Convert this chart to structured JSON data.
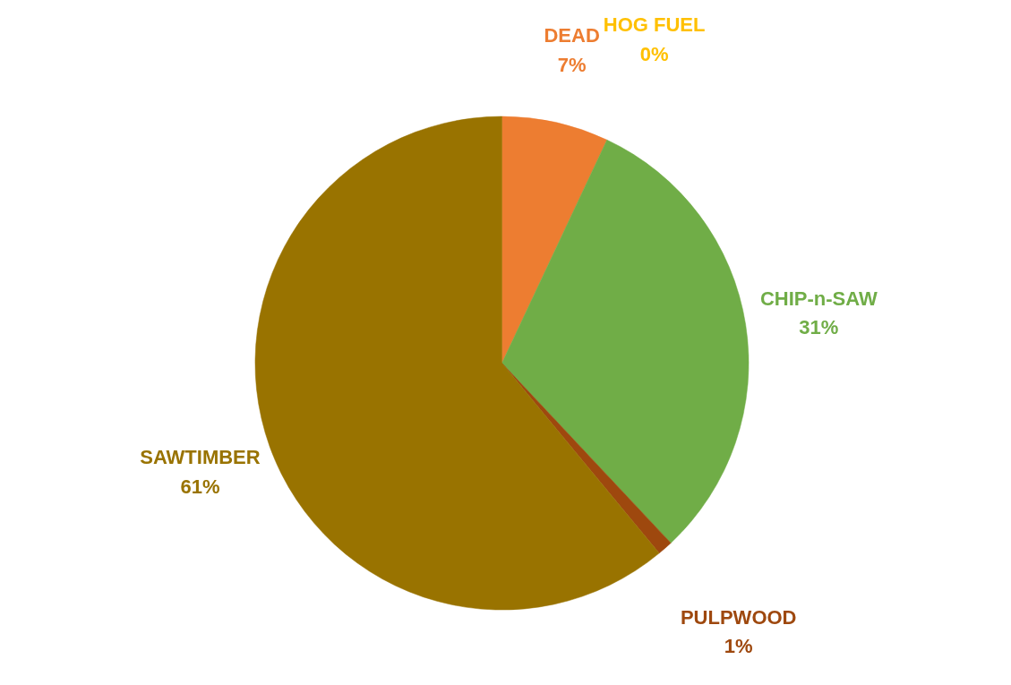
{
  "chart_data": {
    "type": "pie",
    "categories": [
      "DEAD",
      "HOG FUEL",
      "CHIP-n-SAW",
      "PULPWOOD",
      "SAWTIMBER"
    ],
    "values": [
      7,
      0,
      31,
      1,
      61
    ],
    "colors": [
      "#ed7d31",
      "#ffc000",
      "#70ad47",
      "#9e480e",
      "#997300"
    ],
    "value_labels": [
      "7%",
      "0%",
      "31%",
      "1%",
      "61%"
    ]
  }
}
